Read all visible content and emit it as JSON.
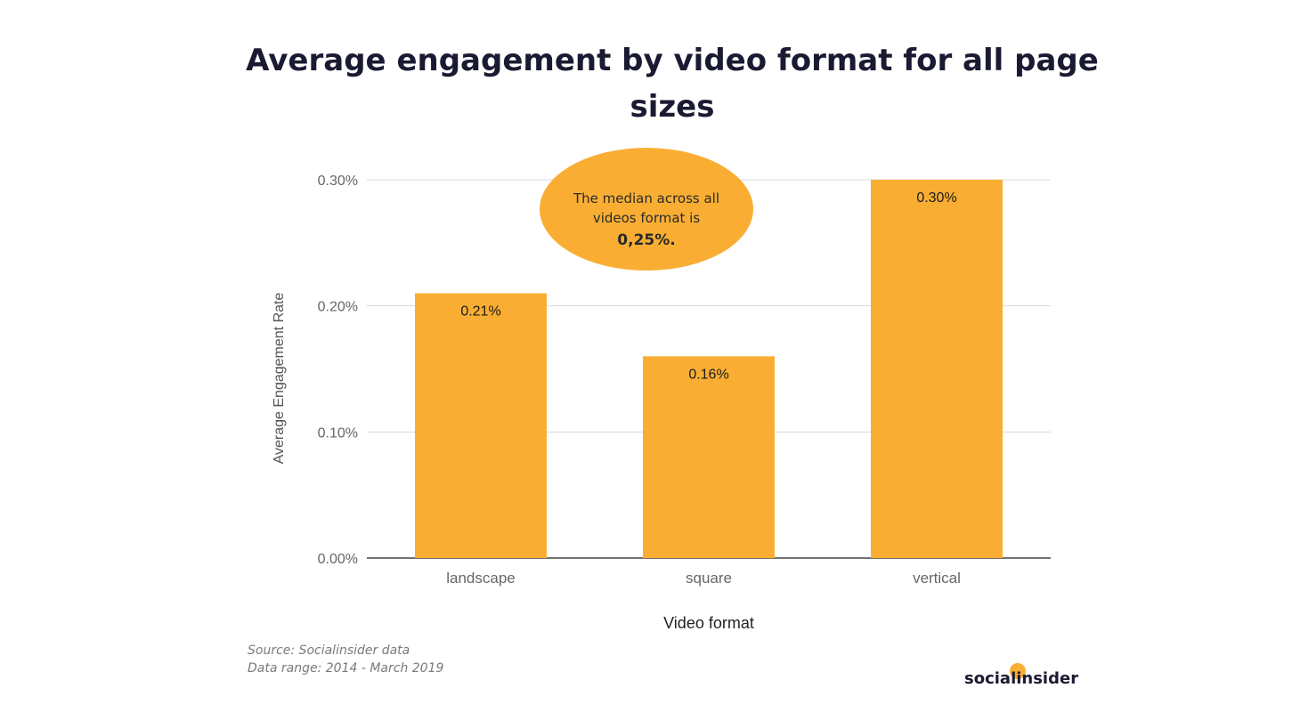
{
  "title": "Average engagement by video format for all page sizes",
  "chart_data": {
    "type": "bar",
    "categories": [
      "landscape",
      "square",
      "vertical"
    ],
    "values": [
      0.21,
      0.16,
      0.3
    ],
    "value_labels": [
      "0.21%",
      "0.16%",
      "0.30%"
    ],
    "yticks": [
      0.0,
      0.1,
      0.2,
      0.3
    ],
    "ytick_labels": [
      "0.00%",
      "0.10%",
      "0.20%",
      "0.30%"
    ],
    "ylim": [
      0,
      0.3
    ],
    "xlabel": "Video format",
    "ylabel": "Average Engagement Rate",
    "grid": true,
    "bar_color": "#f9ae33",
    "annotation": {
      "line1": "The median across all",
      "line2": "videos format is",
      "line3": "0,25%."
    }
  },
  "source": {
    "line1": "Source: Socialinsider data",
    "line2": "Data range: 2014 - March 2019"
  },
  "brand": "socialinsider",
  "brand_color": "#f9ae33"
}
